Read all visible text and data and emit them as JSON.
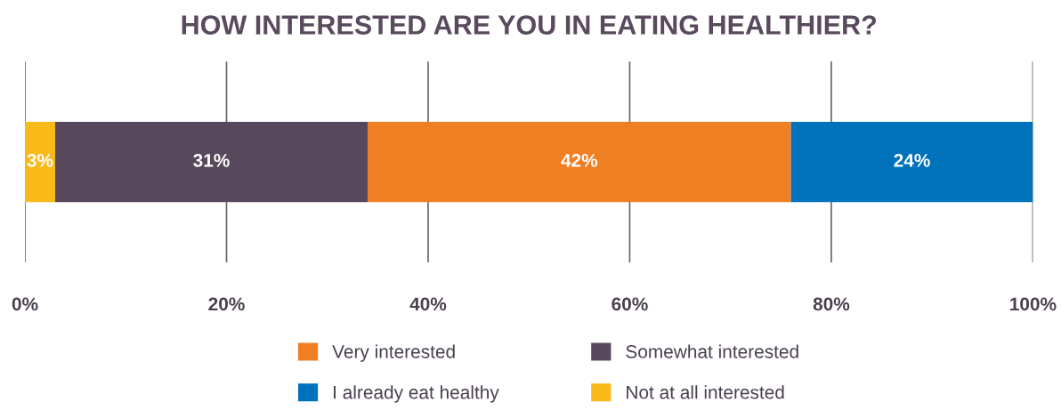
{
  "chart_data": {
    "type": "bar",
    "orientation": "horizontal",
    "stacked": true,
    "title": "HOW INTERESTED ARE YOU IN EATING HEALTHIER?",
    "categories": [
      null
    ],
    "series": [
      {
        "name": "Not at all interested",
        "color": "#f9b918",
        "values": [
          3
        ],
        "value_labels": [
          "3%"
        ]
      },
      {
        "name": "Somewhat interested",
        "color": "#57485b",
        "values": [
          31
        ],
        "value_labels": [
          "31%"
        ]
      },
      {
        "name": "Very interested",
        "color": "#f07e22",
        "values": [
          42
        ],
        "value_labels": [
          "42%"
        ]
      },
      {
        "name": "I already eat healthy",
        "color": "#0072bb",
        "values": [
          24
        ],
        "value_labels": [
          "24%"
        ]
      }
    ],
    "xlim": [
      0,
      100
    ],
    "xticks": [
      {
        "value": 0,
        "label": "0%"
      },
      {
        "value": 20,
        "label": "20%"
      },
      {
        "value": 40,
        "label": "40%"
      },
      {
        "value": 60,
        "label": "60%"
      },
      {
        "value": 80,
        "label": "80%"
      },
      {
        "value": 100,
        "label": "100%"
      }
    ],
    "grid": "x",
    "legend": "bottom",
    "tick_labels": "x"
  }
}
